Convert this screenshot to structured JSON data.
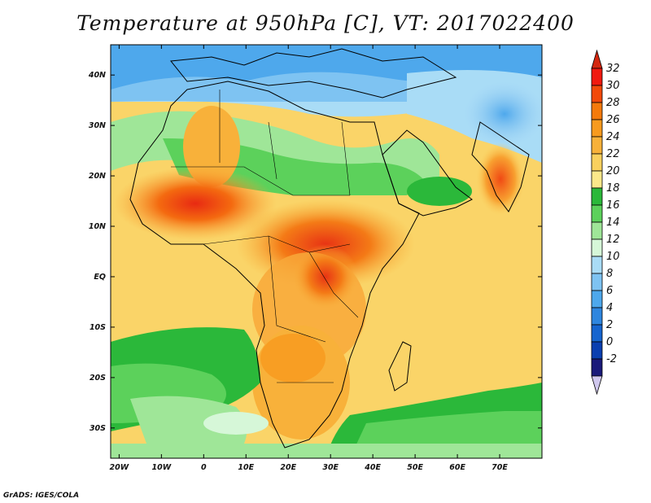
{
  "title": "Temperature at 950hPa [C], VT: 2017022400",
  "credit": "GrADS: IGES/COLA",
  "map": {
    "projection": "latlon",
    "lon_range": [
      -22,
      80
    ],
    "lat_range": [
      -36,
      46
    ],
    "lon_ticks": [
      {
        "value": -20,
        "label": "20W"
      },
      {
        "value": -10,
        "label": "10W"
      },
      {
        "value": 0,
        "label": "0"
      },
      {
        "value": 10,
        "label": "10E"
      },
      {
        "value": 20,
        "label": "20E"
      },
      {
        "value": 30,
        "label": "30E"
      },
      {
        "value": 40,
        "label": "40E"
      },
      {
        "value": 50,
        "label": "50E"
      },
      {
        "value": 60,
        "label": "60E"
      },
      {
        "value": 70,
        "label": "70E"
      }
    ],
    "lat_ticks": [
      {
        "value": 40,
        "label": "40N"
      },
      {
        "value": 30,
        "label": "30N"
      },
      {
        "value": 20,
        "label": "20N"
      },
      {
        "value": 10,
        "label": "10N"
      },
      {
        "value": 0,
        "label": "EQ"
      },
      {
        "value": -10,
        "label": "10S"
      },
      {
        "value": -20,
        "label": "20S"
      },
      {
        "value": -30,
        "label": "30S"
      }
    ]
  },
  "colorbar": {
    "labels": [
      "32",
      "30",
      "28",
      "26",
      "24",
      "22",
      "20",
      "18",
      "16",
      "14",
      "12",
      "10",
      "8",
      "6",
      "4",
      "2",
      "0",
      "-2"
    ],
    "colors": [
      "#f0190f",
      "#f24a0a",
      "#f57a0b",
      "#f79a1e",
      "#f8b13a",
      "#fad05e",
      "#fbe88a",
      "#2bb83a",
      "#5cd15b",
      "#9fe698",
      "#d6f7d8",
      "#a9dcf6",
      "#7ec3f2",
      "#4ea8ec",
      "#2e86df",
      "#1665cf",
      "#0a3fb0",
      "#1a1a7a"
    ],
    "top_arrow_color": "#d42810",
    "bottom_arrow_color": "#d0c8ee"
  }
}
